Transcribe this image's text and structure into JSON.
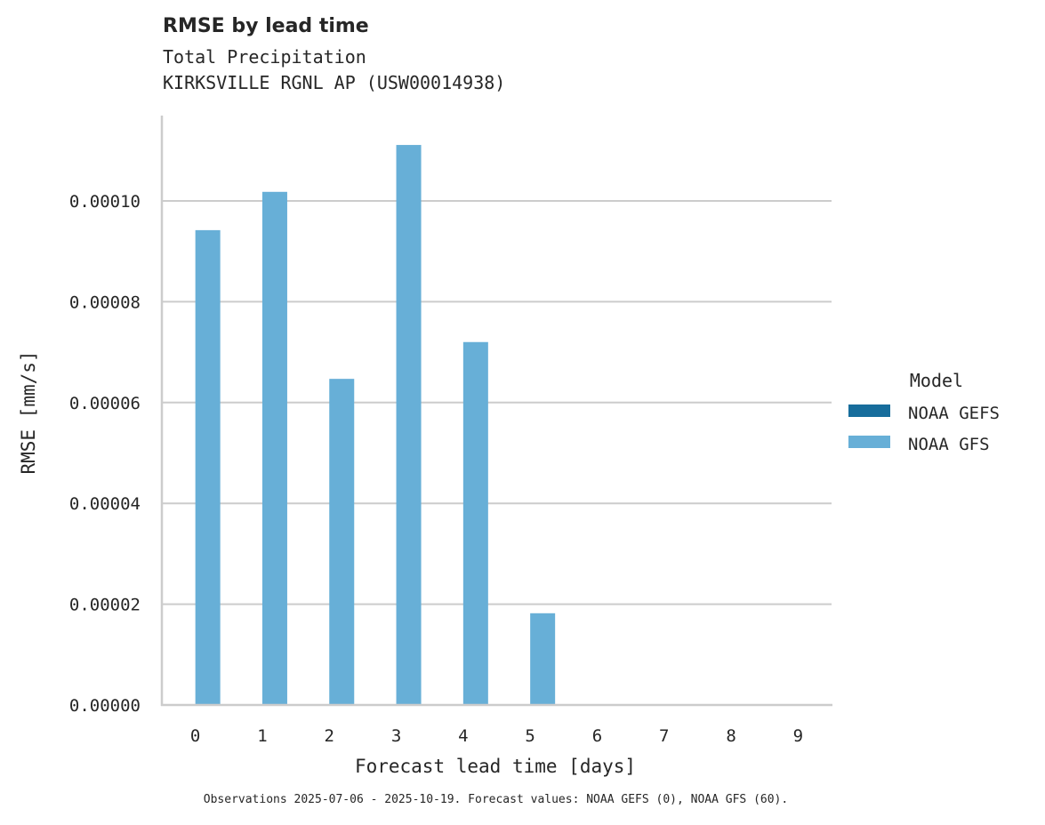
{
  "chart_data": {
    "type": "bar",
    "title": "RMSE by lead time",
    "subtitle_lines": [
      "Total Precipitation",
      "KIRKSVILLE RGNL AP (USW00014938)"
    ],
    "xlabel": "Forecast lead time [days]",
    "ylabel": "RMSE [mm/s]",
    "categories": [
      "0",
      "1",
      "2",
      "3",
      "4",
      "5",
      "6",
      "7",
      "8",
      "9"
    ],
    "ylim": [
      0,
      0.000116
    ],
    "yticks": [
      "0.00000",
      "0.00002",
      "0.00004",
      "0.00006",
      "0.00008",
      "0.00010"
    ],
    "ytick_values": [
      0,
      2e-05,
      4e-05,
      6e-05,
      8e-05,
      0.0001
    ],
    "grid": "horizontal",
    "legend_title": "Model",
    "legend_position": "right",
    "series": [
      {
        "name": "NOAA GEFS",
        "color": "#176d9c",
        "values": [
          null,
          null,
          null,
          null,
          null,
          null,
          null,
          null,
          null,
          null
        ]
      },
      {
        "name": "NOAA GFS",
        "color": "#67afd7",
        "values": [
          9.42e-05,
          0.0001018,
          6.47e-05,
          0.0001111,
          7.2e-05,
          1.82e-05,
          null,
          null,
          null,
          null
        ]
      }
    ],
    "footnote": "Observations 2025-07-06 - 2025-10-19. Forecast values: NOAA GEFS (0), NOAA GFS (60)."
  }
}
